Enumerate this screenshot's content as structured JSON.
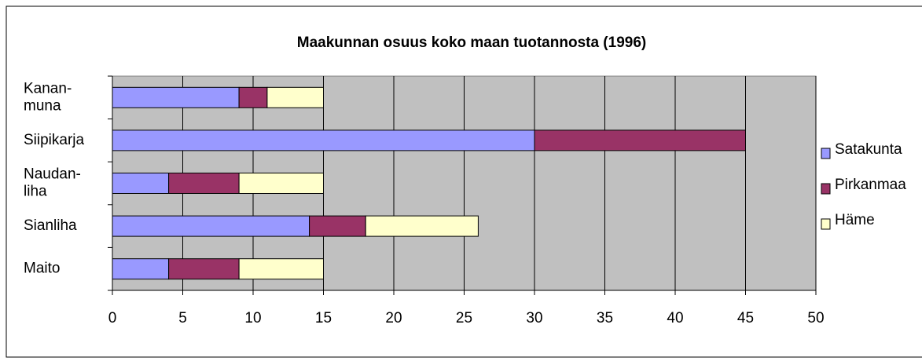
{
  "chart_data": {
    "type": "stacked-barh",
    "title": "Maakunnan osuus koko maan tuotannosta (1996)",
    "categories": [
      "Kanan-muna",
      "Siipikarja",
      "Naudan-liha",
      "Sianliha",
      "Maito"
    ],
    "series": [
      {
        "name": "Satakunta",
        "color": "#9999ff",
        "values": [
          9,
          30,
          4,
          14,
          4
        ]
      },
      {
        "name": "Pirkanmaa",
        "color": "#993366",
        "values": [
          2,
          15,
          5,
          4,
          5
        ]
      },
      {
        "name": "Häme",
        "color": "#ffffcc",
        "values": [
          4,
          0,
          6,
          8,
          6
        ]
      }
    ],
    "xlim": [
      0,
      50
    ],
    "xticks": [
      0,
      5,
      10,
      15,
      20,
      25,
      30,
      35,
      40,
      45,
      50
    ],
    "grid": true,
    "legend": "right"
  }
}
